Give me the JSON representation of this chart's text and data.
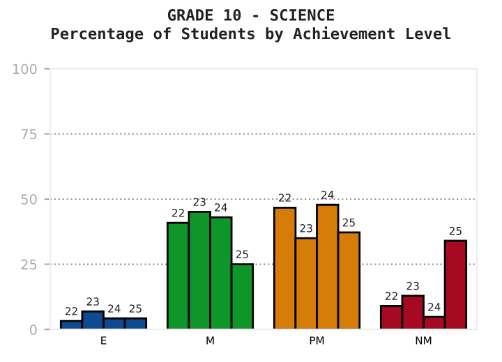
{
  "chart_data": {
    "type": "bar",
    "title": "GRADE 10 - SCIENCE",
    "subtitle": "Percentage of Students by Achievement Level",
    "categories": [
      "E",
      "M",
      "PM",
      "NM"
    ],
    "series": [
      {
        "name": "22",
        "colors": [
          "#0d4a91",
          "#0f9628",
          "#d67d09",
          "#a50a22"
        ],
        "values": [
          3.2,
          40.9,
          46.7,
          9
        ]
      },
      {
        "name": "23",
        "colors": [
          "#0d4a91",
          "#0f9628",
          "#d67d09",
          "#a50a22"
        ],
        "values": [
          6.9,
          45.1,
          35,
          12.9
        ]
      },
      {
        "name": "24",
        "colors": [
          "#0d4a91",
          "#0f9628",
          "#d67d09",
          "#a50a22"
        ],
        "values": [
          4.2,
          43,
          47.8,
          4.8
        ]
      },
      {
        "name": "25",
        "colors": [
          "#0d4a91",
          "#0f9628",
          "#d67d09",
          "#a50a22"
        ],
        "values": [
          4.2,
          25,
          37.2,
          34
        ]
      }
    ],
    "ylim": [
      0,
      100
    ],
    "yticks": [
      0,
      25,
      50,
      75,
      100
    ],
    "grid": "y",
    "legend": false
  }
}
